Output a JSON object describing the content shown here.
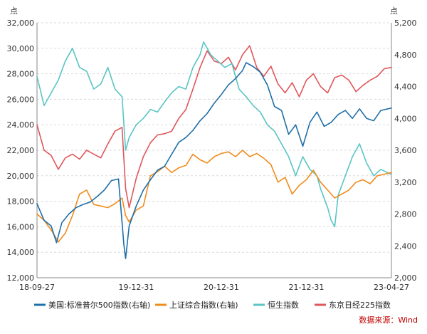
{
  "chart_data": {
    "type": "line",
    "left_axis": {
      "unit": "点",
      "ylim": [
        12000,
        32000
      ],
      "ticks": [
        "12,000",
        "14,000",
        "16,000",
        "18,000",
        "20,000",
        "22,000",
        "24,000",
        "26,000",
        "28,000",
        "30,000",
        "32,000"
      ]
    },
    "right_axis": {
      "unit": "点",
      "ylim": [
        2000,
        5200
      ],
      "ticks": [
        "2,000",
        "2,400",
        "2,800",
        "3,200",
        "3,600",
        "4,000",
        "4,400",
        "4,800",
        "5,200"
      ]
    },
    "x_ticks": [
      "18-09-27",
      "19-12-31",
      "20-12-31",
      "21-12-31",
      "23-04-27"
    ],
    "grid": "horizontal dashed",
    "legend_position": "bottom",
    "source": "数据来源：Wind",
    "series": [
      {
        "name": "美国:标准普尔500指数(右轴)",
        "axis": "right",
        "color": "#1f6fa8",
        "points": [
          [
            0,
            2930
          ],
          [
            0.02,
            2720
          ],
          [
            0.04,
            2650
          ],
          [
            0.055,
            2440
          ],
          [
            0.07,
            2690
          ],
          [
            0.09,
            2800
          ],
          [
            0.11,
            2880
          ],
          [
            0.13,
            2920
          ],
          [
            0.15,
            2950
          ],
          [
            0.17,
            3020
          ],
          [
            0.19,
            3100
          ],
          [
            0.21,
            3220
          ],
          [
            0.23,
            3240
          ],
          [
            0.245,
            2420
          ],
          [
            0.25,
            2240
          ],
          [
            0.26,
            2650
          ],
          [
            0.28,
            2900
          ],
          [
            0.3,
            3100
          ],
          [
            0.32,
            3230
          ],
          [
            0.34,
            3350
          ],
          [
            0.36,
            3400
          ],
          [
            0.38,
            3550
          ],
          [
            0.4,
            3700
          ],
          [
            0.42,
            3760
          ],
          [
            0.44,
            3850
          ],
          [
            0.46,
            3970
          ],
          [
            0.48,
            4060
          ],
          [
            0.5,
            4190
          ],
          [
            0.52,
            4300
          ],
          [
            0.54,
            4420
          ],
          [
            0.56,
            4500
          ],
          [
            0.58,
            4600
          ],
          [
            0.59,
            4700
          ],
          [
            0.61,
            4650
          ],
          [
            0.63,
            4580
          ],
          [
            0.65,
            4420
          ],
          [
            0.67,
            4150
          ],
          [
            0.69,
            4100
          ],
          [
            0.71,
            3800
          ],
          [
            0.73,
            3920
          ],
          [
            0.75,
            3650
          ],
          [
            0.77,
            3950
          ],
          [
            0.79,
            4080
          ],
          [
            0.81,
            3900
          ],
          [
            0.83,
            3950
          ],
          [
            0.85,
            4050
          ],
          [
            0.87,
            4100
          ],
          [
            0.89,
            4000
          ],
          [
            0.91,
            4120
          ],
          [
            0.93,
            4000
          ],
          [
            0.95,
            3970
          ],
          [
            0.97,
            4100
          ],
          [
            1.0,
            4130
          ]
        ]
      },
      {
        "name": "上证综合指数(右轴)",
        "axis": "right",
        "color": "#f08c1e",
        "points": [
          [
            0,
            2800
          ],
          [
            0.02,
            2720
          ],
          [
            0.04,
            2600
          ],
          [
            0.06,
            2450
          ],
          [
            0.08,
            2560
          ],
          [
            0.1,
            2780
          ],
          [
            0.12,
            3050
          ],
          [
            0.14,
            3100
          ],
          [
            0.16,
            2920
          ],
          [
            0.18,
            2900
          ],
          [
            0.2,
            2880
          ],
          [
            0.22,
            2930
          ],
          [
            0.24,
            3000
          ],
          [
            0.25,
            2780
          ],
          [
            0.26,
            2700
          ],
          [
            0.28,
            2850
          ],
          [
            0.3,
            2900
          ],
          [
            0.32,
            3280
          ],
          [
            0.34,
            3330
          ],
          [
            0.36,
            3400
          ],
          [
            0.38,
            3320
          ],
          [
            0.4,
            3380
          ],
          [
            0.42,
            3410
          ],
          [
            0.44,
            3550
          ],
          [
            0.46,
            3480
          ],
          [
            0.48,
            3440
          ],
          [
            0.5,
            3520
          ],
          [
            0.52,
            3560
          ],
          [
            0.54,
            3580
          ],
          [
            0.56,
            3520
          ],
          [
            0.58,
            3600
          ],
          [
            0.6,
            3520
          ],
          [
            0.62,
            3560
          ],
          [
            0.64,
            3500
          ],
          [
            0.66,
            3420
          ],
          [
            0.68,
            3200
          ],
          [
            0.7,
            3260
          ],
          [
            0.72,
            3050
          ],
          [
            0.74,
            3160
          ],
          [
            0.76,
            3230
          ],
          [
            0.78,
            3350
          ],
          [
            0.8,
            3200
          ],
          [
            0.82,
            3100
          ],
          [
            0.84,
            3000
          ],
          [
            0.86,
            3050
          ],
          [
            0.88,
            3100
          ],
          [
            0.9,
            3200
          ],
          [
            0.92,
            3230
          ],
          [
            0.94,
            3180
          ],
          [
            0.96,
            3280
          ],
          [
            0.98,
            3300
          ],
          [
            1.0,
            3320
          ]
        ]
      },
      {
        "name": "恒生指数",
        "axis": "left",
        "color": "#5bc4c4",
        "points": [
          [
            0,
            27800
          ],
          [
            0.02,
            25500
          ],
          [
            0.04,
            26500
          ],
          [
            0.06,
            27500
          ],
          [
            0.08,
            29000
          ],
          [
            0.1,
            30000
          ],
          [
            0.12,
            28500
          ],
          [
            0.14,
            28200
          ],
          [
            0.16,
            26800
          ],
          [
            0.18,
            27200
          ],
          [
            0.2,
            28500
          ],
          [
            0.22,
            26800
          ],
          [
            0.24,
            26200
          ],
          [
            0.25,
            22000
          ],
          [
            0.26,
            23000
          ],
          [
            0.28,
            24000
          ],
          [
            0.3,
            24500
          ],
          [
            0.32,
            25200
          ],
          [
            0.34,
            25000
          ],
          [
            0.36,
            25800
          ],
          [
            0.38,
            26500
          ],
          [
            0.4,
            27000
          ],
          [
            0.42,
            26800
          ],
          [
            0.44,
            28500
          ],
          [
            0.46,
            29500
          ],
          [
            0.47,
            30500
          ],
          [
            0.49,
            29500
          ],
          [
            0.51,
            29000
          ],
          [
            0.53,
            28500
          ],
          [
            0.55,
            28800
          ],
          [
            0.57,
            26800
          ],
          [
            0.59,
            26200
          ],
          [
            0.61,
            25500
          ],
          [
            0.63,
            25000
          ],
          [
            0.65,
            24000
          ],
          [
            0.67,
            23500
          ],
          [
            0.69,
            22500
          ],
          [
            0.71,
            21500
          ],
          [
            0.73,
            20000
          ],
          [
            0.75,
            21500
          ],
          [
            0.77,
            20500
          ],
          [
            0.79,
            20000
          ],
          [
            0.8,
            19000
          ],
          [
            0.82,
            17500
          ],
          [
            0.83,
            16500
          ],
          [
            0.84,
            16000
          ],
          [
            0.85,
            18500
          ],
          [
            0.87,
            20000
          ],
          [
            0.89,
            21500
          ],
          [
            0.91,
            22500
          ],
          [
            0.93,
            21000
          ],
          [
            0.95,
            20000
          ],
          [
            0.97,
            20500
          ],
          [
            1.0,
            20100
          ]
        ]
      },
      {
        "name": "东京日经225指数",
        "axis": "left",
        "color": "#e0565b",
        "points": [
          [
            0,
            24000
          ],
          [
            0.02,
            22000
          ],
          [
            0.04,
            21600
          ],
          [
            0.06,
            20500
          ],
          [
            0.08,
            21400
          ],
          [
            0.1,
            21700
          ],
          [
            0.12,
            21300
          ],
          [
            0.14,
            22000
          ],
          [
            0.16,
            21700
          ],
          [
            0.18,
            21400
          ],
          [
            0.2,
            22500
          ],
          [
            0.22,
            23500
          ],
          [
            0.24,
            23800
          ],
          [
            0.25,
            19000
          ],
          [
            0.26,
            17500
          ],
          [
            0.28,
            19800
          ],
          [
            0.3,
            21500
          ],
          [
            0.32,
            22600
          ],
          [
            0.34,
            23200
          ],
          [
            0.36,
            23300
          ],
          [
            0.38,
            23500
          ],
          [
            0.4,
            24500
          ],
          [
            0.42,
            25200
          ],
          [
            0.44,
            26800
          ],
          [
            0.46,
            28500
          ],
          [
            0.48,
            29800
          ],
          [
            0.5,
            29000
          ],
          [
            0.52,
            28800
          ],
          [
            0.54,
            29300
          ],
          [
            0.56,
            28300
          ],
          [
            0.58,
            29500
          ],
          [
            0.6,
            30200
          ],
          [
            0.62,
            28500
          ],
          [
            0.64,
            27800
          ],
          [
            0.66,
            28600
          ],
          [
            0.68,
            27200
          ],
          [
            0.7,
            26500
          ],
          [
            0.72,
            27300
          ],
          [
            0.74,
            26200
          ],
          [
            0.76,
            27500
          ],
          [
            0.78,
            28000
          ],
          [
            0.8,
            27000
          ],
          [
            0.82,
            26500
          ],
          [
            0.84,
            27700
          ],
          [
            0.86,
            27900
          ],
          [
            0.88,
            27500
          ],
          [
            0.9,
            26600
          ],
          [
            0.92,
            27100
          ],
          [
            0.94,
            27500
          ],
          [
            0.96,
            27800
          ],
          [
            0.98,
            28400
          ],
          [
            1.0,
            28500
          ]
        ]
      }
    ]
  }
}
